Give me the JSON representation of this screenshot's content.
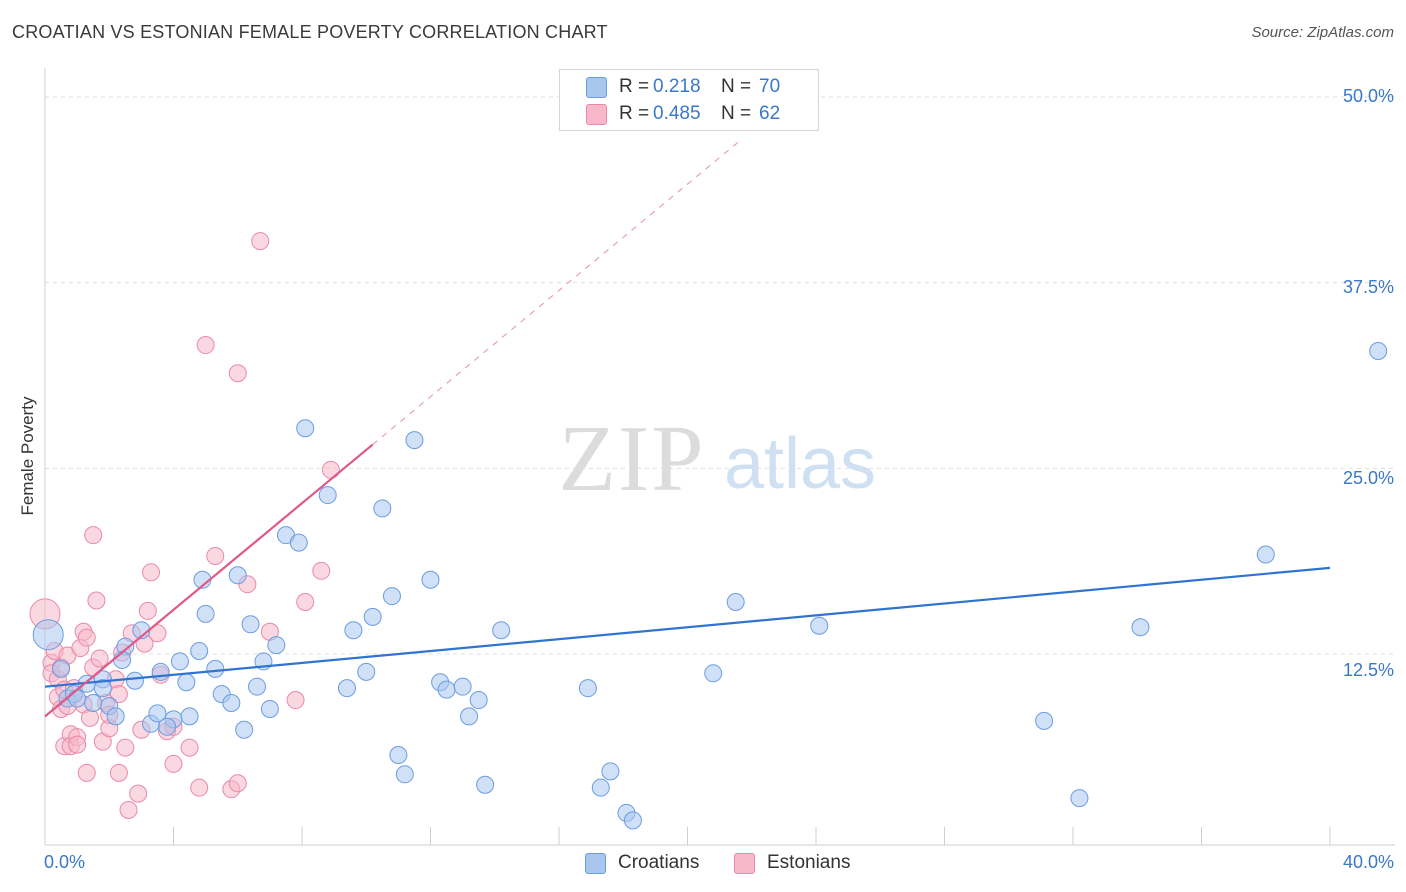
{
  "title": "CROATIAN VS ESTONIAN FEMALE POVERTY CORRELATION CHART",
  "source": "Source: ZipAtlas.com",
  "watermark": {
    "zip": "ZIP",
    "atlas": "atlas"
  },
  "colors": {
    "croatians_fill": "#a9c7ee",
    "croatians_stroke": "#6b9de0",
    "croatians_line": "#2f74d0",
    "estonians_fill": "#f6b8ca",
    "estonians_stroke": "#e88aa8",
    "estonians_line": "#e0588a",
    "tick_label": "#3a78c9"
  },
  "legend_top": [
    {
      "r_label": "R =",
      "r_value": "0.218",
      "n_label": "N =",
      "n_value": "70"
    },
    {
      "r_label": "R =",
      "r_value": "0.485",
      "n_label": "N =",
      "n_value": "62"
    }
  ],
  "legend_bottom": [
    "Croatians",
    "Estonians"
  ],
  "x_tick_labels": {
    "left": "0.0%",
    "right": "40.0%"
  },
  "y_tick_labels": [
    "50.0%",
    "37.5%",
    "25.0%",
    "12.5%"
  ],
  "chart_data": {
    "type": "scatter",
    "title": "CROATIAN VS ESTONIAN FEMALE POVERTY CORRELATION CHART",
    "xlabel": "",
    "ylabel": "Female Poverty",
    "xlim": [
      0,
      40
    ],
    "ylim": [
      0,
      50
    ],
    "y_ticks": [
      12.5,
      25.0,
      37.5,
      50.0
    ],
    "grid": "horizontal dashed",
    "legend_placement": "top-center",
    "series": [
      {
        "name": "Croatians",
        "r": 0.218,
        "n": 70,
        "trend": {
          "x": [
            0,
            40
          ],
          "y": [
            10.3,
            18.3
          ],
          "style": "solid"
        },
        "points": [
          [
            0.1,
            13.8
          ],
          [
            0.5,
            11.5
          ],
          [
            0.7,
            9.5
          ],
          [
            0.9,
            9.8
          ],
          [
            1.0,
            9.5
          ],
          [
            1.3,
            10.5
          ],
          [
            1.5,
            9.2
          ],
          [
            1.8,
            10.8
          ],
          [
            2.0,
            9.0
          ],
          [
            2.2,
            8.3
          ],
          [
            2.5,
            13.0
          ],
          [
            2.8,
            10.7
          ],
          [
            3.0,
            14.1
          ],
          [
            3.3,
            7.8
          ],
          [
            3.5,
            8.5
          ],
          [
            3.6,
            11.3
          ],
          [
            4.0,
            8.1
          ],
          [
            4.2,
            12.0
          ],
          [
            4.4,
            10.6
          ],
          [
            4.5,
            8.3
          ],
          [
            4.8,
            12.7
          ],
          [
            4.9,
            17.5
          ],
          [
            5.0,
            15.2
          ],
          [
            5.5,
            9.8
          ],
          [
            5.8,
            9.2
          ],
          [
            6.0,
            17.8
          ],
          [
            6.2,
            7.4
          ],
          [
            6.4,
            14.5
          ],
          [
            6.6,
            10.3
          ],
          [
            7.0,
            8.8
          ],
          [
            7.2,
            13.1
          ],
          [
            7.5,
            20.5
          ],
          [
            7.9,
            20.0
          ],
          [
            8.1,
            27.7
          ],
          [
            8.8,
            23.2
          ],
          [
            9.4,
            10.2
          ],
          [
            9.6,
            14.1
          ],
          [
            10.0,
            11.3
          ],
          [
            10.2,
            15.0
          ],
          [
            10.5,
            22.3
          ],
          [
            10.8,
            16.4
          ],
          [
            11.0,
            5.7
          ],
          [
            11.2,
            4.4
          ],
          [
            11.5,
            26.9
          ],
          [
            12.0,
            17.5
          ],
          [
            12.3,
            10.6
          ],
          [
            12.5,
            10.1
          ],
          [
            13.0,
            10.3
          ],
          [
            13.2,
            8.3
          ],
          [
            13.5,
            9.4
          ],
          [
            13.7,
            3.7
          ],
          [
            14.2,
            14.1
          ],
          [
            16.9,
            10.2
          ],
          [
            17.3,
            3.5
          ],
          [
            17.6,
            4.6
          ],
          [
            18.1,
            1.8
          ],
          [
            18.3,
            1.3
          ],
          [
            20.8,
            11.2
          ],
          [
            21.5,
            16.0
          ],
          [
            24.1,
            14.4
          ],
          [
            31.1,
            8.0
          ],
          [
            32.2,
            2.8
          ],
          [
            34.1,
            14.3
          ],
          [
            38.0,
            19.2
          ],
          [
            41.5,
            32.9
          ],
          [
            3.8,
            7.6
          ],
          [
            1.8,
            10.2
          ],
          [
            2.4,
            12.1
          ],
          [
            5.3,
            11.5
          ],
          [
            6.8,
            12.0
          ]
        ]
      },
      {
        "name": "Estonians",
        "r": 0.485,
        "n": 62,
        "trend": {
          "x": [
            0,
            10.2
          ],
          "y": [
            8.3,
            26.6
          ],
          "style": "solid"
        },
        "trend_extension": {
          "x": [
            10.2,
            21.6
          ],
          "y": [
            26.6,
            47.0
          ],
          "style": "dashed"
        },
        "points": [
          [
            0.0,
            15.2
          ],
          [
            0.2,
            11.9
          ],
          [
            0.2,
            11.2
          ],
          [
            0.3,
            12.7
          ],
          [
            0.4,
            10.8
          ],
          [
            0.4,
            9.6
          ],
          [
            0.5,
            8.8
          ],
          [
            0.5,
            11.6
          ],
          [
            0.6,
            6.3
          ],
          [
            0.6,
            10.1
          ],
          [
            0.7,
            9.0
          ],
          [
            0.7,
            12.4
          ],
          [
            0.8,
            7.1
          ],
          [
            0.8,
            6.3
          ],
          [
            0.9,
            10.2
          ],
          [
            1.0,
            6.9
          ],
          [
            1.0,
            6.4
          ],
          [
            1.1,
            12.9
          ],
          [
            1.2,
            14.0
          ],
          [
            1.2,
            9.1
          ],
          [
            1.3,
            4.5
          ],
          [
            1.3,
            13.6
          ],
          [
            1.4,
            8.2
          ],
          [
            1.5,
            20.5
          ],
          [
            1.5,
            11.6
          ],
          [
            1.6,
            16.1
          ],
          [
            1.7,
            12.2
          ],
          [
            1.8,
            6.6
          ],
          [
            1.9,
            9.2
          ],
          [
            2.0,
            7.5
          ],
          [
            2.0,
            8.4
          ],
          [
            2.2,
            10.8
          ],
          [
            2.3,
            9.8
          ],
          [
            2.3,
            4.5
          ],
          [
            2.4,
            12.6
          ],
          [
            2.5,
            6.2
          ],
          [
            2.6,
            2.0
          ],
          [
            2.7,
            13.9
          ],
          [
            2.9,
            3.1
          ],
          [
            3.0,
            7.4
          ],
          [
            3.1,
            13.2
          ],
          [
            3.2,
            15.4
          ],
          [
            3.3,
            18.0
          ],
          [
            3.5,
            13.9
          ],
          [
            3.6,
            11.1
          ],
          [
            3.8,
            7.3
          ],
          [
            4.0,
            5.1
          ],
          [
            4.0,
            7.6
          ],
          [
            4.5,
            6.2
          ],
          [
            4.8,
            3.5
          ],
          [
            5.0,
            33.3
          ],
          [
            5.3,
            19.1
          ],
          [
            5.8,
            3.4
          ],
          [
            6.0,
            3.8
          ],
          [
            6.0,
            31.4
          ],
          [
            6.3,
            17.2
          ],
          [
            6.7,
            40.3
          ],
          [
            7.0,
            14.0
          ],
          [
            7.8,
            9.4
          ],
          [
            8.1,
            16.0
          ],
          [
            8.6,
            18.1
          ],
          [
            8.9,
            24.9
          ]
        ]
      }
    ]
  }
}
